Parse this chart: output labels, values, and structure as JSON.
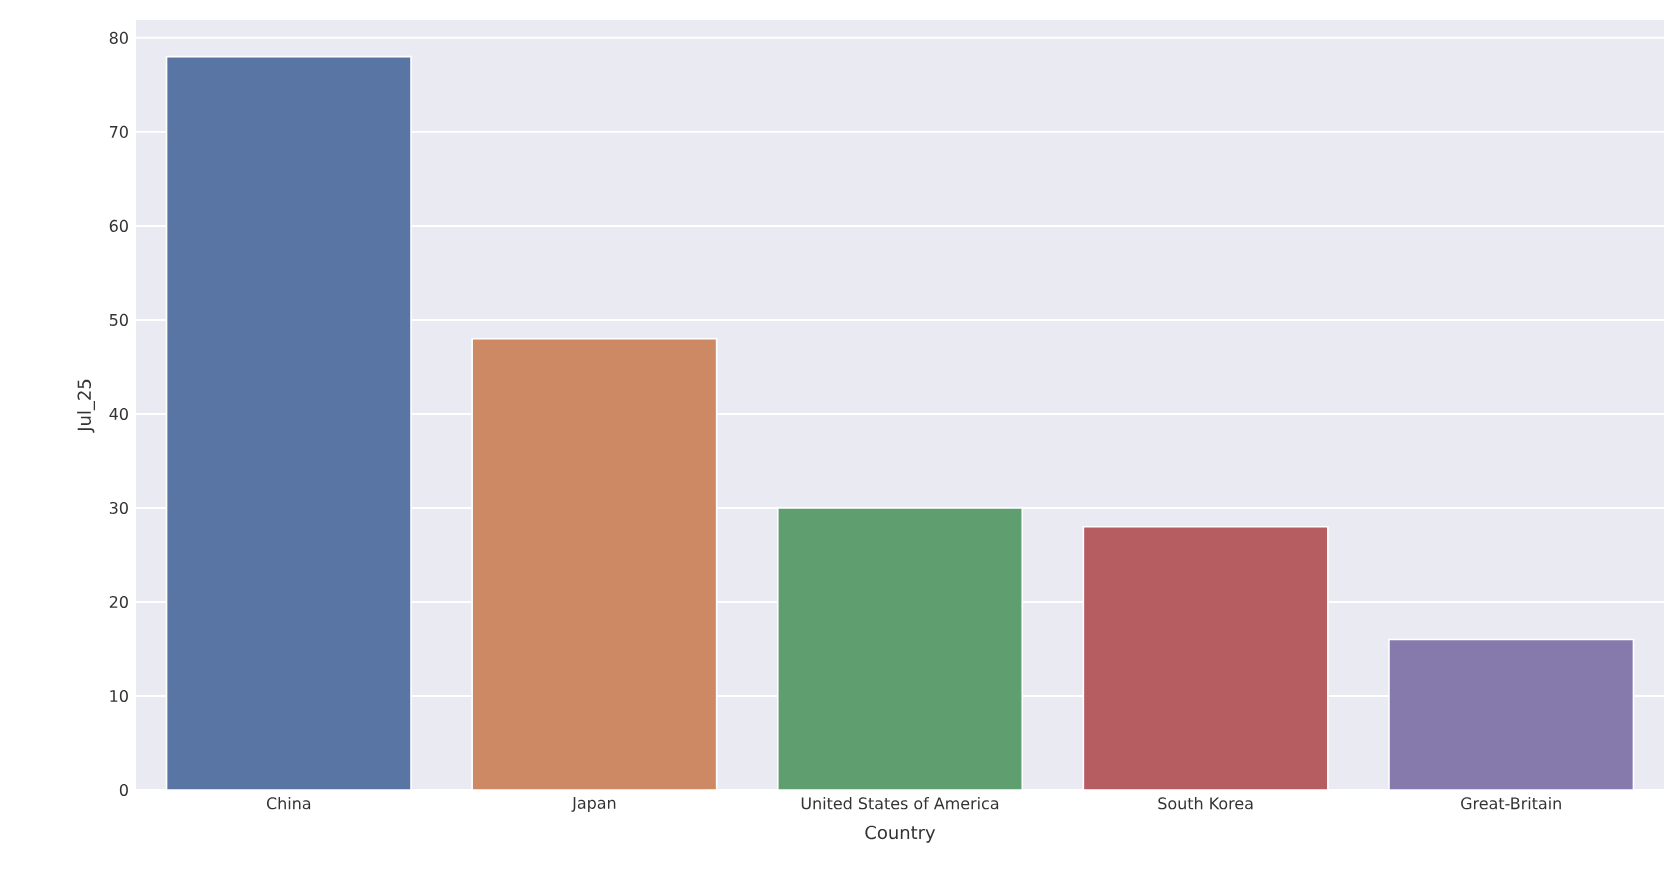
{
  "chart_data": {
    "type": "bar",
    "xlabel": "Country",
    "ylabel": "Jul_25",
    "categories": [
      "China",
      "Japan",
      "United States of America",
      "South Korea",
      "Great-Britain"
    ],
    "values": [
      78,
      48,
      30,
      28,
      16
    ],
    "colors": [
      "#5975a4",
      "#cc8963",
      "#5f9e6e",
      "#b55d60",
      "#857aab"
    ],
    "ylim": [
      0,
      81.9
    ],
    "yticks": [
      0,
      10,
      20,
      30,
      40,
      50,
      60,
      70,
      80
    ],
    "grid": "y"
  }
}
